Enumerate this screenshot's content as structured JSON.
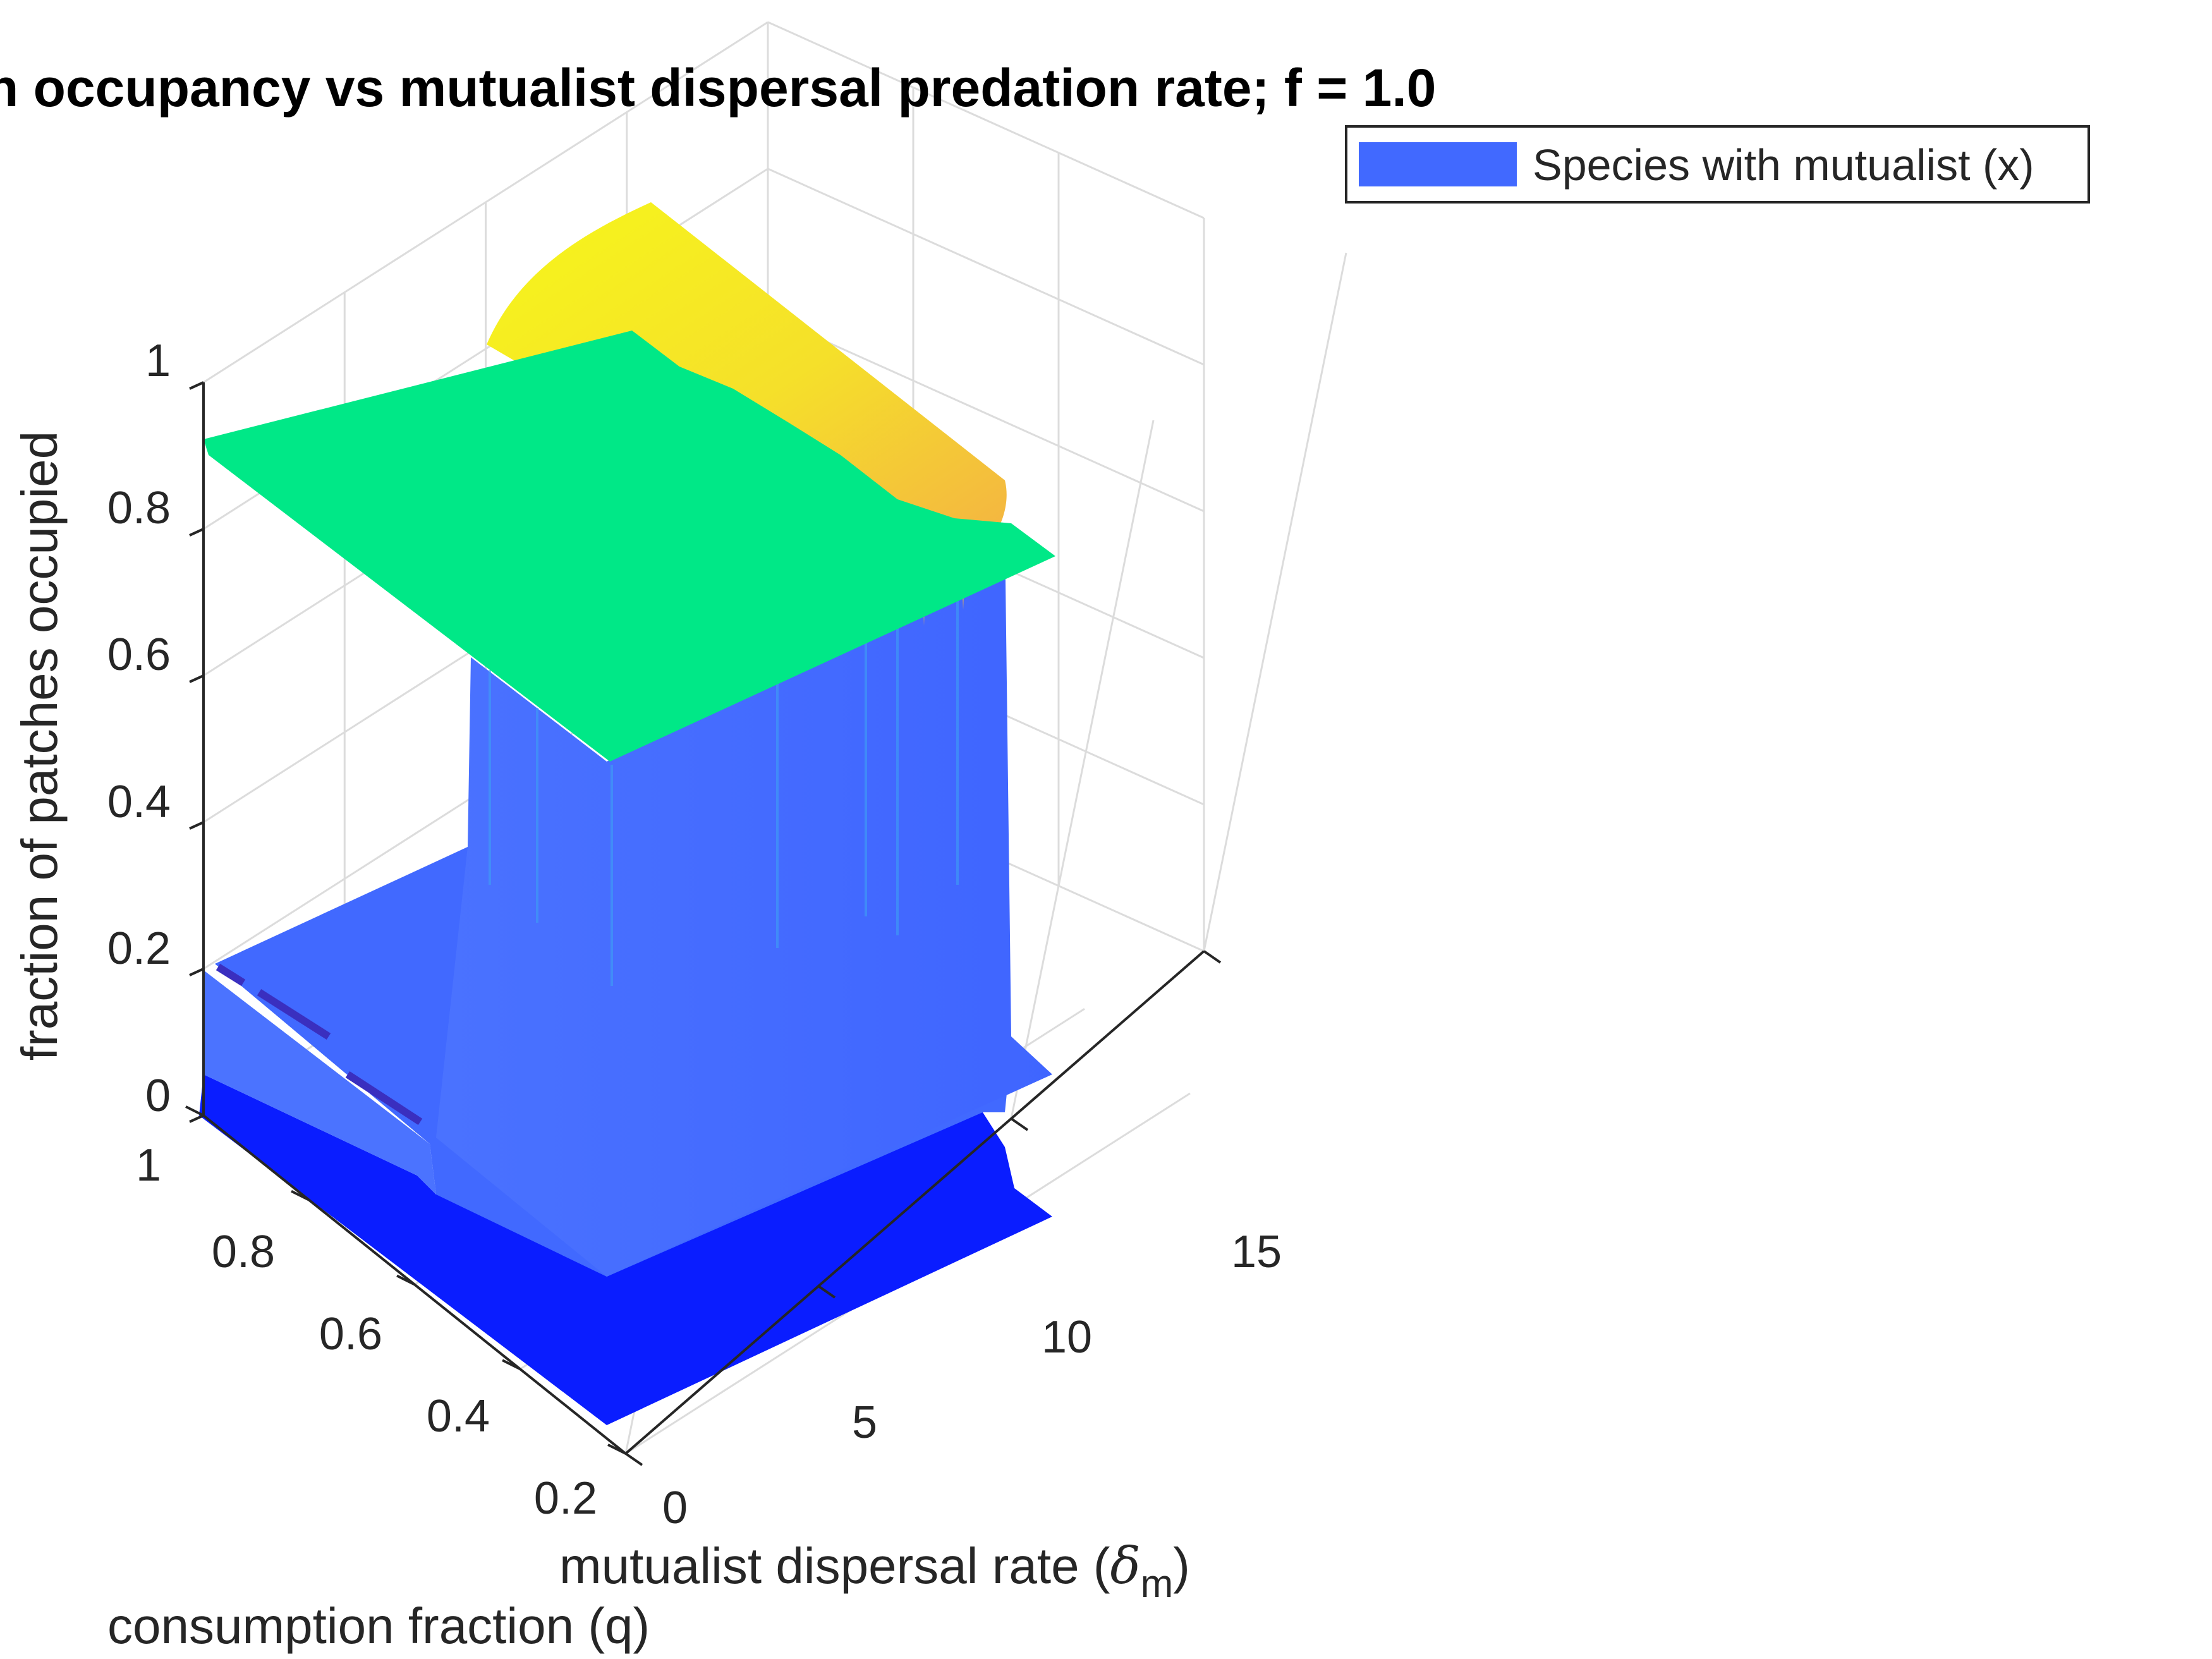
{
  "colors": {
    "background": "#ffffff",
    "axis": "#262626",
    "grid": "#dcdcdc",
    "title": "#000000",
    "legend_patch": "#4169ff",
    "high_plateau": "#00e887",
    "peak_top": "#f2f21a",
    "peak_base": "#f5c23a",
    "wall": "#4169ff",
    "floor": "#0a1dff"
  },
  "chart_data": {
    "type": "surface",
    "title": "n occupancy vs mutualist dispersal predation rate; f = 1.0",
    "xlabel_main": "mutualist dispersal rate (",
    "xlabel_symbol": "δ",
    "xlabel_sub": "m",
    "xlabel_close": ")",
    "ylabel": "consumption fraction (q)",
    "zlabel": "fraction of patches occupied",
    "x_ticks": [
      "0",
      "5",
      "10",
      "15"
    ],
    "y_ticks": [
      "0.2",
      "0.4",
      "0.6",
      "0.8",
      "1"
    ],
    "z_ticks": [
      "0",
      "0.2",
      "0.4",
      "0.6",
      "0.8",
      "1"
    ],
    "xlim": [
      0,
      15
    ],
    "ylim": [
      0.2,
      1
    ],
    "zlim": [
      0,
      1
    ],
    "grid": true,
    "legend": {
      "location": "top-right",
      "entries": [
        {
          "label": "Species with mutualist (x)",
          "color": "#4169ff"
        }
      ]
    },
    "series": [
      {
        "name": "Species with mutualist (x)",
        "description_regions": [
          {
            "region": "high plateau",
            "x_range": [
              0,
              12
            ],
            "y_range": [
              0.55,
              1
            ],
            "z": 0.9
          },
          {
            "region": "peak",
            "x_range": [
              4,
              10
            ],
            "y_range": [
              0.55,
              1
            ],
            "z_max": 1.0
          },
          {
            "region": "floor",
            "x_range": [
              0,
              15
            ],
            "y_range": [
              0.2,
              0.55
            ],
            "z": 0.0
          }
        ]
      }
    ]
  }
}
